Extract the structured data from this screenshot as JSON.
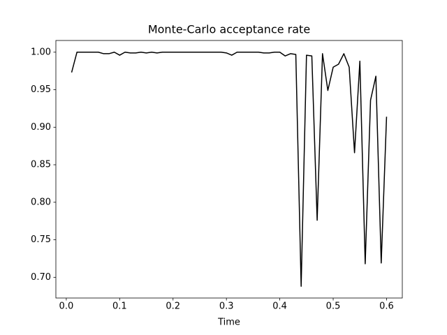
{
  "chart_data": {
    "type": "line",
    "title": "Monte-Carlo acceptance rate",
    "x_label": "Time",
    "x": [
      0.01,
      0.02,
      0.03,
      0.04,
      0.05,
      0.06,
      0.07,
      0.08,
      0.09,
      0.1,
      0.11,
      0.12,
      0.13,
      0.14,
      0.15,
      0.16,
      0.17,
      0.18,
      0.19,
      0.2,
      0.21,
      0.22,
      0.23,
      0.24,
      0.25,
      0.26,
      0.27,
      0.28,
      0.29,
      0.3,
      0.31,
      0.32,
      0.33,
      0.34,
      0.35,
      0.36,
      0.37,
      0.38,
      0.39,
      0.4,
      0.41,
      0.42,
      0.43,
      0.44,
      0.45,
      0.46,
      0.47,
      0.48,
      0.49,
      0.5,
      0.51,
      0.52,
      0.53,
      0.54,
      0.55,
      0.56,
      0.57,
      0.58,
      0.59,
      0.6
    ],
    "series": [
      {
        "color": "#000000",
        "values": [
          0.973,
          1.0,
          1.0,
          1.0,
          1.0,
          1.0,
          0.998,
          0.998,
          1.0,
          0.996,
          1.0,
          0.999,
          0.999,
          1.0,
          0.999,
          1.0,
          0.999,
          1.0,
          1.0,
          1.0,
          1.0,
          1.0,
          1.0,
          1.0,
          1.0,
          1.0,
          1.0,
          1.0,
          1.0,
          0.999,
          0.996,
          1.0,
          1.0,
          1.0,
          1.0,
          1.0,
          0.999,
          0.999,
          1.0,
          1.0,
          0.995,
          0.998,
          0.997,
          0.688,
          0.996,
          0.995,
          0.776,
          0.998,
          0.949,
          0.98,
          0.984,
          0.998,
          0.98,
          0.866,
          0.988,
          0.718,
          0.936,
          0.968,
          0.719,
          0.914
        ]
      }
    ],
    "xlim": [
      -0.0195,
      0.6295
    ],
    "ylim": [
      0.6724,
      1.0156
    ],
    "xticks": [
      {
        "value": 0,
        "label": "0.0"
      },
      0.1,
      0.2,
      0.3,
      0.4,
      0.5,
      0.6
    ],
    "yticks": [
      {
        "value": 0.7,
        "label": "0.70"
      },
      0.75,
      {
        "value": 0.8,
        "label": "0.80"
      },
      0.85,
      {
        "value": 0.9,
        "label": "0.90"
      },
      0.95,
      {
        "value": 1,
        "label": "1.00"
      }
    ]
  }
}
